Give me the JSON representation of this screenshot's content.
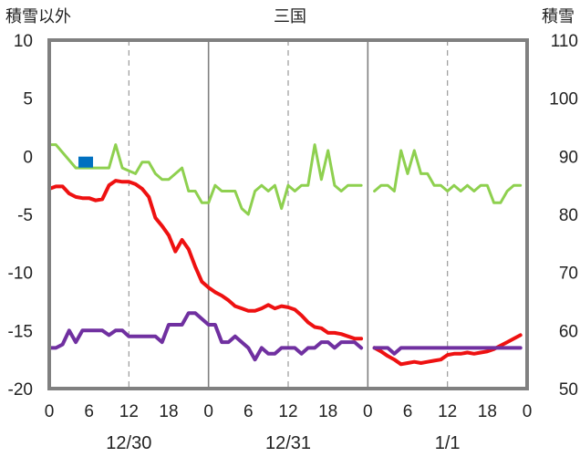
{
  "chart_data": {
    "type": "line",
    "title": "三国",
    "left_axis_label": "積雪以外",
    "right_axis_label": "積雪",
    "left_ylim": [
      -20,
      10
    ],
    "right_ylim": [
      50,
      110
    ],
    "left_yticks": [
      10,
      5,
      0,
      -5,
      -10,
      -15,
      -20
    ],
    "right_yticks": [
      110,
      100,
      90,
      80,
      70,
      60,
      50
    ],
    "x_hour_ticks": [
      "0",
      "6",
      "12",
      "18",
      "0",
      "6",
      "12",
      "18",
      "0",
      "6",
      "12",
      "18",
      "0"
    ],
    "date_labels": [
      {
        "label": "12/30",
        "hour": 12
      },
      {
        "label": "12/31",
        "hour": 36
      },
      {
        "label": "1/1",
        "hour": 60
      }
    ],
    "grid": "dashed vertical at 12h, solid vertical at 0h",
    "series": [
      {
        "axis": "right",
        "color": "#8ed04f",
        "points": [
          [
            0,
            92
          ],
          [
            1,
            92
          ],
          [
            4,
            88
          ],
          [
            9,
            88
          ],
          [
            10,
            92
          ],
          [
            11,
            88
          ],
          [
            13,
            87
          ],
          [
            14,
            89
          ],
          [
            15,
            89
          ],
          [
            16,
            87
          ],
          [
            17,
            86
          ],
          [
            18,
            86
          ],
          [
            20,
            88
          ],
          [
            21,
            84
          ],
          [
            22,
            84
          ],
          [
            23,
            82
          ],
          [
            24,
            82
          ],
          [
            25,
            85
          ],
          [
            26,
            84
          ],
          [
            28,
            84
          ],
          [
            29,
            81
          ],
          [
            30,
            80
          ],
          [
            31,
            84
          ],
          [
            32,
            85
          ],
          [
            33,
            84
          ],
          [
            34,
            85
          ],
          [
            35,
            81
          ],
          [
            36,
            85
          ],
          [
            37,
            84
          ],
          [
            38,
            85
          ],
          [
            39,
            85
          ],
          [
            40,
            92
          ],
          [
            41,
            86
          ],
          [
            42,
            91
          ],
          [
            43,
            85
          ],
          [
            44,
            84
          ],
          [
            45,
            85
          ],
          [
            46,
            85
          ],
          [
            47,
            85
          ],
          null,
          [
            49,
            84
          ],
          [
            50,
            85
          ],
          [
            51,
            85
          ],
          [
            52,
            84
          ],
          [
            53,
            91
          ],
          [
            54,
            87
          ],
          [
            55,
            91
          ],
          [
            56,
            87
          ],
          [
            57,
            87
          ],
          [
            58,
            85
          ],
          [
            59,
            85
          ],
          [
            60,
            84
          ],
          [
            61,
            85
          ],
          [
            62,
            84
          ],
          [
            63,
            85
          ],
          [
            64,
            84
          ],
          [
            65,
            85
          ],
          [
            66,
            85
          ],
          [
            67,
            82
          ],
          [
            68,
            82
          ],
          [
            69,
            84
          ],
          [
            70,
            85
          ],
          [
            71,
            85
          ]
        ]
      },
      {
        "axis": "left",
        "color": "#ee1111",
        "points": [
          [
            0,
            -2.8
          ],
          [
            1,
            -2.6
          ],
          [
            2,
            -2.6
          ],
          [
            3,
            -3.2
          ],
          [
            4,
            -3.5
          ],
          [
            5,
            -3.6
          ],
          [
            6,
            -3.6
          ],
          [
            7,
            -3.8
          ],
          [
            8,
            -3.7
          ],
          [
            9,
            -2.5
          ],
          [
            10,
            -2.1
          ],
          [
            11,
            -2.2
          ],
          [
            12,
            -2.2
          ],
          [
            13,
            -2.4
          ],
          [
            14,
            -2.8
          ],
          [
            15,
            -3.5
          ],
          [
            16,
            -5.3
          ],
          [
            17,
            -6.0
          ],
          [
            18,
            -6.8
          ],
          [
            19,
            -8.2
          ],
          [
            20,
            -7.2
          ],
          [
            21,
            -8.0
          ],
          [
            22,
            -9.5
          ],
          [
            23,
            -10.8
          ],
          [
            24,
            -11.3
          ],
          [
            25,
            -11.7
          ],
          [
            26,
            -12.0
          ],
          [
            27,
            -12.4
          ],
          [
            28,
            -12.9
          ],
          [
            29,
            -13.1
          ],
          [
            30,
            -13.3
          ],
          [
            31,
            -13.3
          ],
          [
            32,
            -13.1
          ],
          [
            33,
            -12.8
          ],
          [
            34,
            -13.1
          ],
          [
            35,
            -12.9
          ],
          [
            36,
            -13.0
          ],
          [
            37,
            -13.2
          ],
          [
            38,
            -13.7
          ],
          [
            39,
            -14.3
          ],
          [
            40,
            -14.7
          ],
          [
            41,
            -14.8
          ],
          [
            42,
            -15.2
          ],
          [
            43,
            -15.2
          ],
          [
            44,
            -15.3
          ],
          [
            45,
            -15.5
          ],
          [
            46,
            -15.7
          ],
          [
            47,
            -15.7
          ],
          null,
          [
            49,
            -16.5
          ],
          [
            50,
            -16.8
          ],
          [
            51,
            -17.2
          ],
          [
            52,
            -17.5
          ],
          [
            53,
            -17.9
          ],
          [
            54,
            -17.8
          ],
          [
            55,
            -17.7
          ],
          [
            56,
            -17.8
          ],
          [
            57,
            -17.7
          ],
          [
            58,
            -17.6
          ],
          [
            59,
            -17.5
          ],
          [
            60,
            -17.1
          ],
          [
            61,
            -17.0
          ],
          [
            62,
            -17.0
          ],
          [
            63,
            -16.9
          ],
          [
            64,
            -17.0
          ],
          [
            65,
            -16.9
          ],
          [
            66,
            -16.8
          ],
          [
            67,
            -16.6
          ],
          [
            68,
            -16.3
          ],
          [
            69,
            -16.0
          ],
          [
            70,
            -15.7
          ],
          [
            71,
            -15.4
          ]
        ]
      },
      {
        "axis": "left",
        "color": "#7030a0",
        "points": [
          [
            0,
            -16.5
          ],
          [
            1,
            -16.5
          ],
          [
            2,
            -16.2
          ],
          [
            3,
            -15.0
          ],
          [
            4,
            -16.0
          ],
          [
            5,
            -15.0
          ],
          [
            6,
            -15.0
          ],
          [
            8,
            -15.0
          ],
          [
            9,
            -15.4
          ],
          [
            10,
            -15.0
          ],
          [
            11,
            -15.0
          ],
          [
            12,
            -15.5
          ],
          [
            16,
            -15.5
          ],
          [
            17,
            -16.0
          ],
          [
            18,
            -14.5
          ],
          [
            20,
            -14.5
          ],
          [
            21,
            -13.5
          ],
          [
            22,
            -13.5
          ],
          [
            24,
            -14.5
          ],
          [
            25,
            -14.5
          ],
          [
            26,
            -16.0
          ],
          [
            27,
            -16.0
          ],
          [
            28,
            -15.5
          ],
          [
            29,
            -16.0
          ],
          [
            30,
            -16.5
          ],
          [
            31,
            -17.5
          ],
          [
            32,
            -16.5
          ],
          [
            33,
            -17.0
          ],
          [
            34,
            -17.0
          ],
          [
            35,
            -16.5
          ],
          [
            36,
            -16.5
          ],
          [
            37,
            -16.5
          ],
          [
            38,
            -17.0
          ],
          [
            39,
            -16.5
          ],
          [
            40,
            -16.5
          ],
          [
            41,
            -16.0
          ],
          [
            42,
            -16.0
          ],
          [
            43,
            -16.5
          ],
          [
            44,
            -16.0
          ],
          [
            45,
            -16.0
          ],
          [
            46,
            -16.0
          ],
          [
            47,
            -16.5
          ],
          null,
          [
            49,
            -16.5
          ],
          [
            51,
            -16.5
          ],
          [
            52,
            -17.0
          ],
          [
            53,
            -16.5
          ],
          [
            71,
            -16.5
          ]
        ]
      }
    ],
    "markers": [
      {
        "axis": "left",
        "color": "#0070c0",
        "shape": "square",
        "x": 5.5,
        "y": -0.5
      }
    ]
  }
}
